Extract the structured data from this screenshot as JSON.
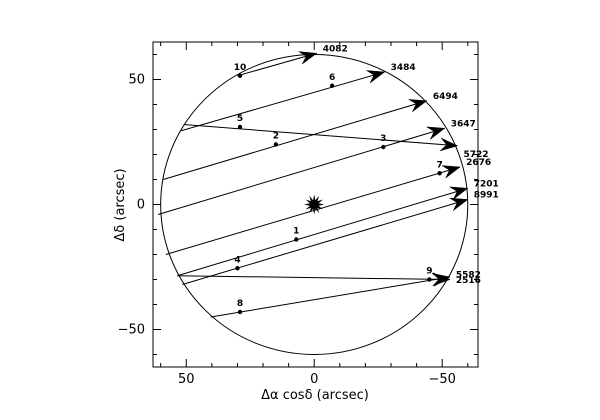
{
  "chart_data": {
    "type": "scatter",
    "xlabel": "Δα cosδ (arcsec)",
    "ylabel": "Δδ (arcsec)",
    "xlim": [
      63,
      -64
    ],
    "ylim": [
      -65,
      65
    ],
    "xticks": [
      50,
      0,
      -50
    ],
    "yticks": [
      50,
      0,
      -50
    ],
    "tick_labels_x": [
      "50",
      "0",
      "−50"
    ],
    "tick_labels_y": [
      "50",
      "0",
      "−50"
    ],
    "grid": false,
    "circle": {
      "center": [
        0,
        0
      ],
      "radius": 60
    },
    "center_marker": {
      "x": 0,
      "y": 0,
      "shape": "star"
    },
    "tracks": [
      {
        "label": "4082",
        "start": [
          30,
          51.5
        ],
        "end": [
          -1,
          60.5
        ]
      },
      {
        "label": "3484",
        "start": [
          52,
          29.5
        ],
        "end": [
          -27.5,
          53
        ]
      },
      {
        "label": "6494",
        "start": [
          59,
          10
        ],
        "end": [
          -44,
          41.5
        ]
      },
      {
        "label": "3647",
        "start": [
          61,
          -4
        ],
        "end": [
          -51,
          30.5
        ]
      },
      {
        "label": "5722",
        "start": [
          51,
          32
        ],
        "end": [
          -56,
          23.5
        ]
      },
      {
        "label": "2676",
        "start": [
          58,
          -20
        ],
        "end": [
          -57,
          15
        ]
      },
      {
        "label": "7201",
        "start": [
          53.5,
          -28.5
        ],
        "end": [
          -60,
          6.5
        ]
      },
      {
        "label": "8991",
        "start": [
          51.5,
          -32
        ],
        "end": [
          -60,
          2
        ]
      },
      {
        "label": "5582",
        "start": [
          53.5,
          -28.5
        ],
        "end": [
          -53,
          -30
        ]
      },
      {
        "label": "2516",
        "start": [
          40.5,
          -45
        ],
        "end": [
          -53,
          -29
        ]
      }
    ],
    "points": [
      {
        "label": "10",
        "x": 29,
        "y": 51.5
      },
      {
        "label": "6",
        "x": -7,
        "y": 47.5
      },
      {
        "label": "5",
        "x": 29,
        "y": 31
      },
      {
        "label": "2",
        "x": 15,
        "y": 24
      },
      {
        "label": "3",
        "x": -27,
        "y": 23
      },
      {
        "label": "7",
        "x": -49,
        "y": 12.5
      },
      {
        "label": "1",
        "x": 7,
        "y": -14
      },
      {
        "label": "4",
        "x": 30,
        "y": -25.5
      },
      {
        "label": "9",
        "x": -45,
        "y": -30
      },
      {
        "label": "8",
        "x": 29,
        "y": -43
      }
    ]
  }
}
